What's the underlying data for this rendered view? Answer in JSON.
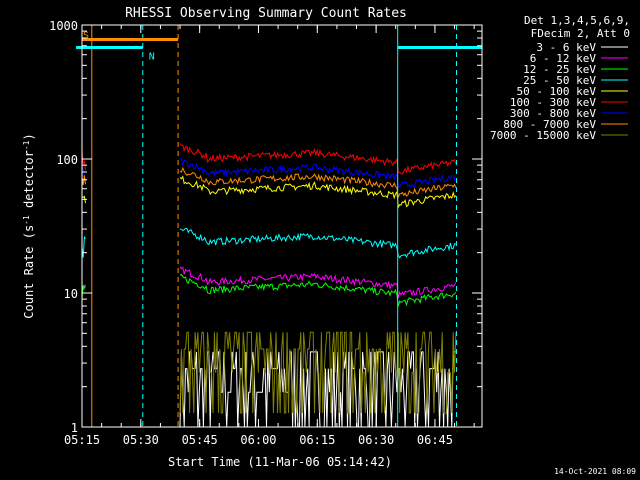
{
  "chart_data": {
    "type": "line",
    "title": "RHESSI Observing Summary Count Rates",
    "xlabel": "Start Time (11-Mar-06 05:14:42)",
    "ylabel_main": "Count Rate (s",
    "ylabel_exp1": "-1",
    "ylabel_mid": " detector",
    "ylabel_exp2": "-1",
    "ylabel_end": ")",
    "y_scale": "log",
    "ylim": [
      1,
      1000
    ],
    "xlim_min": [
      15,
      117
    ],
    "y_ticks": [
      {
        "label": "1",
        "value": 1
      },
      {
        "label": "10",
        "value": 10
      },
      {
        "label": "100",
        "value": 100
      },
      {
        "label": "1000",
        "value": 1000
      }
    ],
    "x_ticks": [
      {
        "label": "05:15",
        "min": 15
      },
      {
        "label": "05:30",
        "min": 30
      },
      {
        "label": "05:45",
        "min": 45
      },
      {
        "label": "06:00",
        "min": 60
      },
      {
        "label": "06:15",
        "min": 75
      },
      {
        "label": "06:30",
        "min": 90
      },
      {
        "label": "06:45",
        "min": 105
      }
    ],
    "legend_header": [
      "Det 1,3,4,5,6,9,",
      "FDecim 2, Att 0"
    ],
    "legend_position": "right",
    "series": [
      {
        "name": "3 - 6 keV",
        "color": "#ffffff",
        "level": 2.0
      },
      {
        "name": "6 - 12 keV",
        "color": "#ff00ff",
        "level": 12
      },
      {
        "name": "12 - 25 keV",
        "color": "#00ff00",
        "level": 10.5
      },
      {
        "name": "25 - 50 keV",
        "color": "#00ffff",
        "level": 24
      },
      {
        "name": "50 - 100 keV",
        "color": "#ffff00",
        "level": 57
      },
      {
        "name": "100 - 300 keV",
        "color": "#ff0000",
        "level": 100
      },
      {
        "name": "300 - 800 keV",
        "color": "#0000ff",
        "level": 78
      },
      {
        "name": "800 - 7000 keV",
        "color": "#ff8c00",
        "level": 67
      },
      {
        "name": "7000 - 15000 keV",
        "color": "#808000",
        "level": 2.8
      }
    ],
    "flags": [
      {
        "label": "S",
        "color": "#ff8c00",
        "start_min": 15,
        "end_min": 39.5,
        "level": 780
      },
      {
        "label": "N",
        "color": "#00ffff",
        "start_min": 13.5,
        "end_min": 30.5,
        "level": 680
      },
      {
        "label": "",
        "color": "#00ffff",
        "start_min": 95.5,
        "end_min": 117,
        "level": 680
      }
    ],
    "markers": [
      {
        "min": 17.5,
        "color": "#ff8c00",
        "dashed": false
      },
      {
        "min": 30.5,
        "color": "#00ffff",
        "dashed": true
      },
      {
        "min": 39.5,
        "color": "#ff8c00",
        "dashed": true
      },
      {
        "min": 95.5,
        "color": "#00ffff",
        "dashed": false
      },
      {
        "min": 110.5,
        "color": "#00ffff",
        "dashed": true
      }
    ],
    "timestamp": "14-Oct-2021 08:09"
  }
}
